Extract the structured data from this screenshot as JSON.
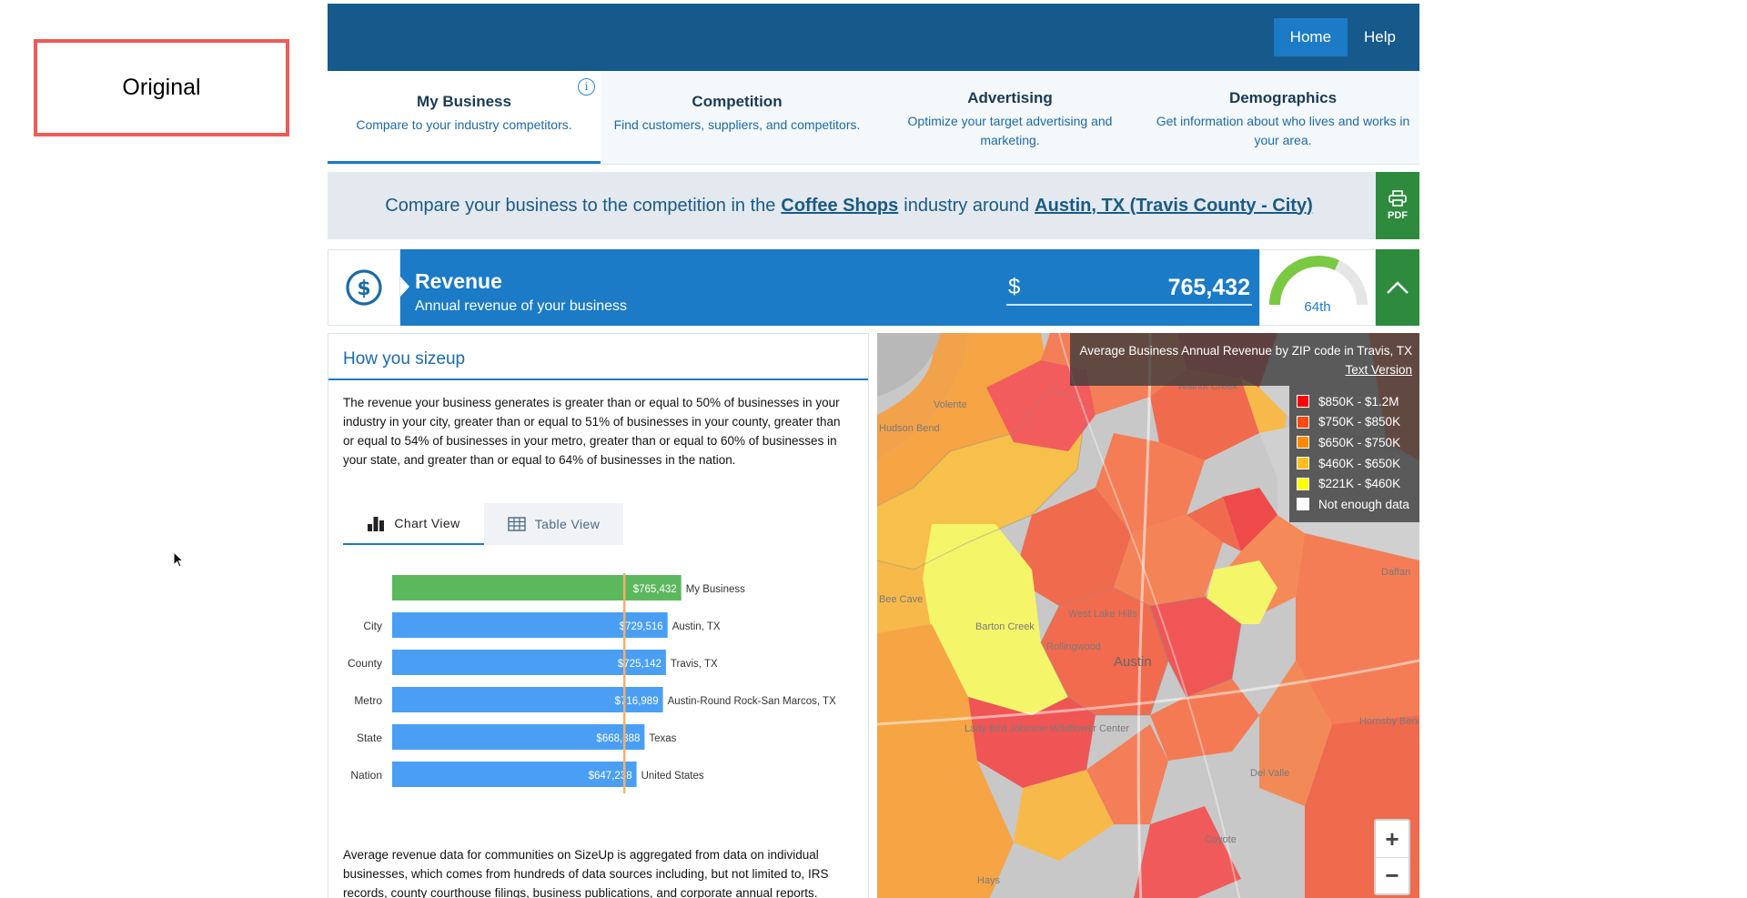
{
  "annotation": {
    "label": "Original"
  },
  "topnav": {
    "home": "Home",
    "help": "Help"
  },
  "tabs": [
    {
      "title": "My Business",
      "subtitle": "Compare to your industry competitors."
    },
    {
      "title": "Competition",
      "subtitle": "Find customers, suppliers, and competitors."
    },
    {
      "title": "Advertising",
      "subtitle": "Optimize your target advertising and marketing."
    },
    {
      "title": "Demographics",
      "subtitle": "Get information about who lives and works in your area."
    }
  ],
  "compare": {
    "prefix": "Compare your business to the competition in the",
    "industry": "Coffee Shops",
    "middle": "industry around",
    "location": "Austin, TX (Travis County - City)",
    "pdf_label": "PDF"
  },
  "revenue": {
    "title": "Revenue",
    "subtitle": "Annual revenue of your business",
    "currency": "$",
    "value": "765,432",
    "percentile_label": "64th",
    "percentile": 64
  },
  "sizeup": {
    "title": "How you sizeup",
    "paragraph": "The revenue your business generates is greater than or equal to 50% of businesses in your industry in your city, greater than or equal to 51% of businesses in your county, greater than or equal to 54% of businesses in your metro, greater than or equal to 60% of businesses in your state, and greater than or equal to 64% of businesses in the nation.",
    "chart_view_label": "Chart View",
    "table_view_label": "Table View",
    "footnote": "Average revenue data for communities on SizeUp is aggregated from data on individual businesses, which comes from hundreds of data sources including, but not limited to, IRS records, county courthouse filings, business publications, and corporate annual reports."
  },
  "chart_data": {
    "type": "bar",
    "orientation": "horizontal",
    "categories": [
      "",
      "City",
      "County",
      "Metro",
      "State",
      "Nation"
    ],
    "value_labels": [
      "$765,432",
      "$729,516",
      "$725,142",
      "$716,989",
      "$668,388",
      "$647,238"
    ],
    "bar_labels": [
      "My Business",
      "Austin, TX",
      "Travis, TX",
      "Austin-Round Rock-San Marcos, TX",
      "Texas",
      "United States"
    ],
    "values": [
      765432,
      729516,
      725142,
      716989,
      668388,
      647238
    ],
    "colors": [
      "#5cb85c",
      "#4a9ff5",
      "#4a9ff5",
      "#4a9ff5",
      "#4a9ff5",
      "#4a9ff5"
    ],
    "xticks": [
      "$0",
      "$200,000",
      "$400,000",
      "$600,000"
    ],
    "xtick_values": [
      0,
      200000,
      400000,
      600000
    ],
    "reference_line": 615000,
    "reference_color": "#f0b070"
  },
  "map": {
    "title": "Average Business Annual Revenue by ZIP code in Travis, TX",
    "text_version": "Text Version",
    "legend": [
      {
        "label": "$850K - $1.2M",
        "color": "#ff0000"
      },
      {
        "label": "$750K - $850K",
        "color": "#ff4a10"
      },
      {
        "label": "$650K - $750K",
        "color": "#ff8a00"
      },
      {
        "label": "$460K - $650K",
        "color": "#ffbe1a"
      },
      {
        "label": "$221K - $460K",
        "color": "#ffff00"
      },
      {
        "label": "Not enough data",
        "color": "#ffffff"
      }
    ],
    "place_labels": [
      "Volente",
      "Hudson Bend",
      "Walnut Creek",
      "Daffan",
      "West Lake Hills",
      "Rollingwood",
      "Barton Creek",
      "Austin",
      "Lady Bird Johnson Wildflower Center",
      "Hornsby Bend",
      "Del Valle",
      "Hays",
      "Coyote",
      "Bee Cave"
    ],
    "zoom_in": "+",
    "zoom_out": "−"
  }
}
